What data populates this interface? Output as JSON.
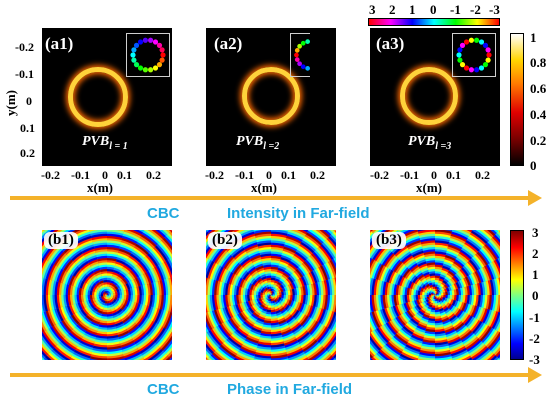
{
  "top_row": {
    "panels": [
      {
        "label": "(a1)",
        "pvb_main": "PVB",
        "pvb_sub": "l = 1"
      },
      {
        "label": "(a2)",
        "pvb_main": "PVB",
        "pvb_sub": "l =2"
      },
      {
        "label": "(a3)",
        "pvb_main": "PVB",
        "pvb_sub": "l =3"
      }
    ],
    "y_ticks": [
      "-0.2",
      "-0.1",
      "0",
      "0.1",
      "0.2"
    ],
    "x_ticks": [
      "-0.2",
      "-0.1",
      "0",
      "0.1",
      "0.2"
    ],
    "y_title": "y(m)",
    "x_title": "x(m)",
    "colorbar_ticks": [
      "1",
      "0.8",
      "0.6",
      "0.4",
      "0.2",
      "0"
    ],
    "phase_scale_ticks": [
      "3",
      "2",
      "1",
      "0",
      "-1",
      "-2",
      "-3"
    ],
    "caption_left": "CBC",
    "caption_right": "Intensity in Far-field"
  },
  "bottom_row": {
    "panels": [
      {
        "label": "(b1)",
        "charge": 1
      },
      {
        "label": "(b2)",
        "charge": 2
      },
      {
        "label": "(b3)",
        "charge": 3
      }
    ],
    "colorbar_ticks": [
      "3",
      "2",
      "1",
      "0",
      "-1",
      "-2",
      "-3"
    ],
    "caption_left": "CBC",
    "caption_right": "Phase in Far-field"
  },
  "colors": {
    "arrow": "#f4b22a",
    "caption": "#21a9e0"
  }
}
